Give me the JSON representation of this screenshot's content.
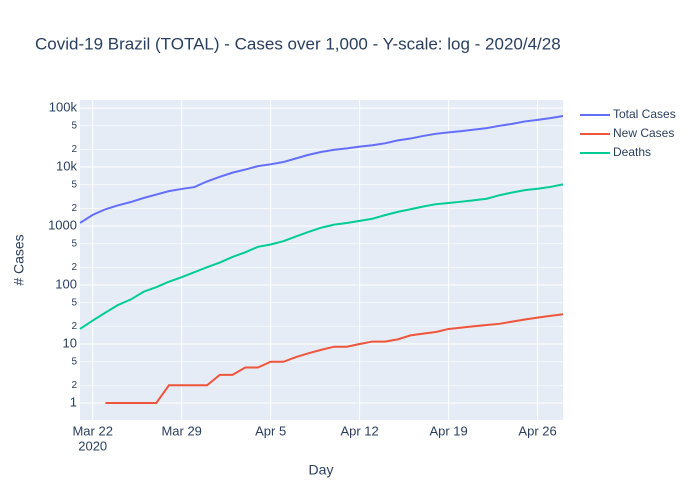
{
  "chart_data": {
    "type": "line",
    "title": "Covid-19 Brazil (TOTAL) - Cases over 1,000 - Y-scale: log - 2020/4/28",
    "x_label": "Day",
    "y_label": "# Cases",
    "log_y": true,
    "grid": true,
    "x": [
      "2020-03-21",
      "2020-03-22",
      "2020-03-23",
      "2020-03-24",
      "2020-03-25",
      "2020-03-26",
      "2020-03-27",
      "2020-03-28",
      "2020-03-29",
      "2020-03-30",
      "2020-03-31",
      "2020-04-01",
      "2020-04-02",
      "2020-04-03",
      "2020-04-04",
      "2020-04-05",
      "2020-04-06",
      "2020-04-07",
      "2020-04-08",
      "2020-04-09",
      "2020-04-10",
      "2020-04-11",
      "2020-04-12",
      "2020-04-13",
      "2020-04-14",
      "2020-04-15",
      "2020-04-16",
      "2020-04-17",
      "2020-04-18",
      "2020-04-19",
      "2020-04-20",
      "2020-04-21",
      "2020-04-22",
      "2020-04-23",
      "2020-04-24",
      "2020-04-25",
      "2020-04-26",
      "2020-04-27",
      "2020-04-28"
    ],
    "xlim": [
      "2020-03-21",
      "2020-04-28"
    ],
    "xticks": [
      {
        "value": "2020-03-22",
        "label": "Mar 22"
      },
      {
        "value": "2020-03-29",
        "label": "Mar 29"
      },
      {
        "value": "2020-04-05",
        "label": "Apr 5"
      },
      {
        "value": "2020-04-12",
        "label": "Apr 12"
      },
      {
        "value": "2020-04-19",
        "label": "Apr 19"
      },
      {
        "value": "2020-04-26",
        "label": "Apr 26"
      }
    ],
    "x_year": "2020",
    "ylim": [
      0.515,
      137000
    ],
    "yticks": [
      1,
      2,
      5,
      10,
      {
        "value": 20,
        "label": "2"
      },
      {
        "value": 50,
        "label": "5"
      },
      100,
      {
        "value": 200,
        "label": "2"
      },
      {
        "value": 500,
        "label": "5"
      },
      1000,
      {
        "value": 2000,
        "label": "2"
      },
      {
        "value": 5000,
        "label": "5"
      },
      {
        "value": 10000,
        "label": "10k"
      },
      {
        "value": 20000,
        "label": "2"
      },
      {
        "value": 50000,
        "label": "5"
      },
      {
        "value": 100000,
        "label": "100k"
      }
    ],
    "series": [
      {
        "name": "Total Cases",
        "color": "#636efa",
        "values": [
          1128,
          1546,
          1924,
          2247,
          2554,
          2985,
          3417,
          3904,
          4256,
          4579,
          5717,
          6836,
          8044,
          9056,
          10360,
          11130,
          12161,
          14034,
          16170,
          18092,
          19638,
          20727,
          22169,
          23430,
          25262,
          28320,
          30425,
          33682,
          36599,
          38654,
          40581,
          43079,
          45757,
          50036,
          54043,
          59324,
          63100,
          67446,
          73235
        ]
      },
      {
        "name": "New Cases",
        "color": "#EF553B",
        "values": [
          null,
          null,
          1,
          1,
          1,
          1,
          1,
          2,
          2,
          2,
          2,
          3,
          3,
          4,
          4,
          5,
          5,
          6,
          7,
          8,
          9,
          9,
          10,
          11,
          11,
          12,
          14,
          15,
          16,
          18,
          19,
          20,
          21,
          22,
          24,
          26,
          28,
          30,
          32
        ]
      },
      {
        "name": "Deaths",
        "color": "#00cc96",
        "values": [
          18,
          25,
          34,
          46,
          57,
          77,
          92,
          114,
          136,
          165,
          201,
          240,
          299,
          359,
          445,
          486,
          553,
          667,
          800,
          941,
          1057,
          1124,
          1223,
          1328,
          1532,
          1736,
          1924,
          2141,
          2347,
          2462,
          2587,
          2741,
          2906,
          3331,
          3704,
          4057,
          4286,
          4603,
          5083
        ]
      }
    ]
  }
}
